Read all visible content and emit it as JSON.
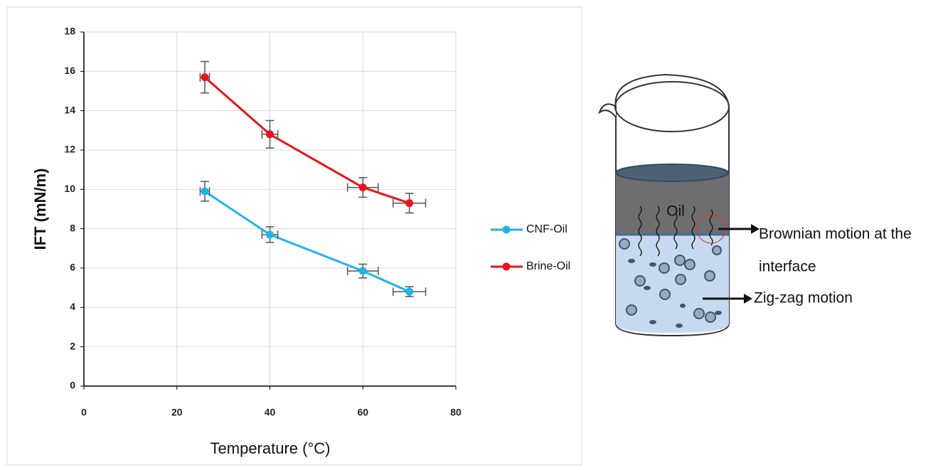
{
  "chart_data": {
    "type": "line",
    "xlabel": "Temperature (°C)",
    "ylabel": "IFT (mN/m)",
    "x": [
      26,
      40,
      60,
      70
    ],
    "series": [
      {
        "name": "CNF-Oil",
        "color": "#1fb4e6",
        "values": [
          9.9,
          7.7,
          5.85,
          4.8
        ],
        "y_errors": [
          0.5,
          0.4,
          0.35,
          0.25
        ],
        "x_errors": [
          1,
          1.7,
          3.3,
          3.5
        ]
      },
      {
        "name": "Brine-Oil",
        "color": "#e8141b",
        "values": [
          15.7,
          12.8,
          10.1,
          9.3
        ],
        "y_errors": [
          0.8,
          0.7,
          0.5,
          0.5
        ],
        "x_errors": [
          1,
          1.7,
          3.3,
          3.5
        ]
      }
    ],
    "xlim": [
      0,
      80
    ],
    "xticks": [
      0,
      20,
      40,
      60,
      80
    ],
    "ylim": [
      0,
      18
    ],
    "yticks": [
      0,
      2,
      4,
      6,
      8,
      10,
      12,
      14,
      16,
      18
    ],
    "grid": true,
    "legend": "right"
  },
  "diagram": {
    "oil_label": "Oil",
    "brownian_label": [
      "Brownian motion at the",
      "interface"
    ],
    "zigzag_label": "Zig-zag motion"
  }
}
